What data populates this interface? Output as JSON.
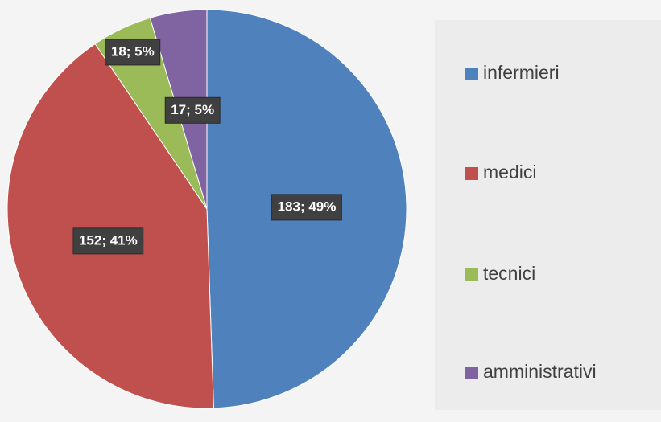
{
  "chart_data": {
    "type": "pie",
    "categories": [
      "infermieri",
      "medici",
      "tecnici",
      "amministrativi"
    ],
    "values": [
      183,
      152,
      18,
      17
    ],
    "value_labels": [
      "183; 49%",
      "152; 41%",
      "18; 5%",
      "17; 5%"
    ],
    "colors": [
      "#4f81bd",
      "#c0504d",
      "#9bbb59",
      "#8064a2"
    ]
  }
}
